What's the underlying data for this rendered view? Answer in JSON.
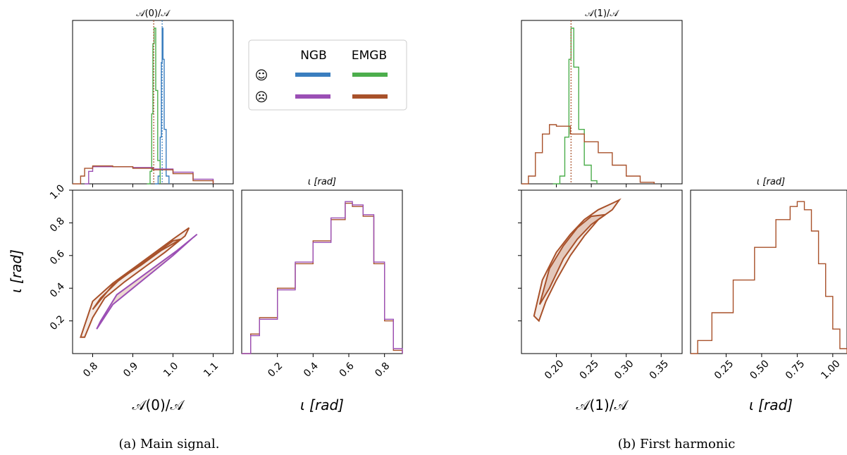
{
  "figure": {
    "caption_a": "(a) Main signal.",
    "caption_b": "(b) First harmonic"
  },
  "legend": {
    "col1": "NGB",
    "col2": "EMGB",
    "row1_symbol": "☺",
    "row2_symbol": "☹",
    "colors": {
      "ngb_happy": "#3a7ebf",
      "emgb_happy": "#4cae4c",
      "ngb_sad": "#9b4fb5",
      "emgb_sad": "#a8512a"
    }
  },
  "chart_data": [
    {
      "id": "a-top",
      "type": "line",
      "title": "𝒜(0)/𝒜",
      "xlim": [
        0.75,
        1.15
      ],
      "x_ticks": [
        0.8,
        0.9,
        1.0,
        1.1
      ],
      "truth_lines": [
        0.952,
        0.973
      ],
      "series": [
        {
          "name": "NGB ☺",
          "color": "#3a7ebf",
          "x": [
            0.955,
            0.963,
            0.968,
            0.971,
            0.973,
            0.975,
            0.978,
            0.983,
            0.99
          ],
          "y": [
            0.0,
            0.05,
            0.3,
            0.78,
            1.0,
            0.8,
            0.35,
            0.05,
            0.0
          ]
        },
        {
          "name": "EMGB ☺",
          "color": "#4cae4c",
          "x": [
            0.935,
            0.943,
            0.947,
            0.95,
            0.953,
            0.957,
            0.962,
            0.968
          ],
          "y": [
            0.0,
            0.08,
            0.45,
            0.9,
            1.0,
            0.6,
            0.15,
            0.0
          ]
        },
        {
          "name": "NGB ☹",
          "color": "#9b4fb5",
          "x": [
            0.78,
            0.79,
            0.8,
            0.85,
            0.9,
            0.95,
            1.0,
            1.05,
            1.1
          ],
          "y": [
            0.0,
            0.08,
            0.11,
            0.11,
            0.105,
            0.095,
            0.075,
            0.03,
            0.0
          ]
        },
        {
          "name": "EMGB ☹",
          "color": "#a8512a",
          "x": [
            0.75,
            0.77,
            0.78,
            0.8,
            0.85,
            0.9,
            0.95,
            1.0,
            1.05,
            1.1
          ],
          "y": [
            0.0,
            0.05,
            0.1,
            0.115,
            0.11,
            0.1,
            0.09,
            0.065,
            0.02,
            0.0
          ]
        }
      ]
    },
    {
      "id": "a-2d",
      "type": "contour",
      "xlim": [
        0.75,
        1.15
      ],
      "ylim": [
        0.0,
        1.0
      ],
      "x_ticks": [
        0.8,
        0.9,
        1.0,
        1.1
      ],
      "y_ticks": [
        0.2,
        0.4,
        0.6,
        0.8,
        1.0
      ],
      "xlabel": "𝒜(0)/𝒜",
      "ylabel": "ι [rad]",
      "contours": [
        {
          "name": "EMGB ☹",
          "color": "#a8512a",
          "x": [
            0.77,
            0.8,
            0.85,
            0.9,
            0.95,
            1.0,
            1.04,
            1.03,
            0.98,
            0.93,
            0.88,
            0.83,
            0.8,
            0.78,
            0.77
          ],
          "y": [
            0.1,
            0.32,
            0.43,
            0.52,
            0.61,
            0.7,
            0.77,
            0.72,
            0.62,
            0.53,
            0.44,
            0.34,
            0.22,
            0.1,
            0.1
          ]
        },
        {
          "name": "EMGB ☹",
          "color": "#a8512a",
          "x": [
            0.8,
            0.85,
            0.9,
            0.95,
            1.0,
            1.02,
            0.97,
            0.92,
            0.87,
            0.82,
            0.8
          ],
          "y": [
            0.27,
            0.42,
            0.51,
            0.6,
            0.69,
            0.7,
            0.63,
            0.54,
            0.46,
            0.34,
            0.27
          ]
        },
        {
          "name": "NGB ☹",
          "color": "#9b4fb5",
          "x": [
            0.82,
            0.86,
            0.91,
            0.96,
            1.01,
            1.06,
            1.05,
            1.0,
            0.95,
            0.9,
            0.85,
            0.81,
            0.82
          ],
          "y": [
            0.2,
            0.36,
            0.45,
            0.54,
            0.63,
            0.73,
            0.71,
            0.6,
            0.5,
            0.4,
            0.3,
            0.15,
            0.2
          ]
        }
      ]
    },
    {
      "id": "a-iota",
      "type": "line",
      "title": "ι [rad]",
      "xlim": [
        0.0,
        0.9
      ],
      "x_ticks": [
        0.2,
        0.4,
        0.6,
        0.8
      ],
      "xlabel": "ι [rad]",
      "series": [
        {
          "name": "EMGB ☹",
          "color": "#a8512a",
          "x": [
            0.0,
            0.05,
            0.1,
            0.2,
            0.3,
            0.4,
            0.5,
            0.58,
            0.62,
            0.68,
            0.74,
            0.8,
            0.85,
            0.9
          ],
          "y": [
            0.0,
            0.12,
            0.22,
            0.4,
            0.55,
            0.69,
            0.82,
            0.92,
            0.9,
            0.84,
            0.55,
            0.2,
            0.02,
            0.0
          ]
        },
        {
          "name": "NGB ☹",
          "color": "#9b4fb5",
          "x": [
            0.0,
            0.05,
            0.1,
            0.2,
            0.3,
            0.4,
            0.5,
            0.58,
            0.62,
            0.68,
            0.74,
            0.8,
            0.85,
            0.9
          ],
          "y": [
            0.0,
            0.11,
            0.21,
            0.39,
            0.56,
            0.68,
            0.83,
            0.93,
            0.91,
            0.85,
            0.56,
            0.21,
            0.03,
            0.0
          ]
        }
      ]
    },
    {
      "id": "b-top",
      "type": "line",
      "title": "𝒜(1)/𝒜",
      "xlim": [
        0.15,
        0.38
      ],
      "x_ticks": [
        0.2,
        0.25,
        0.3,
        0.35
      ],
      "truth_lines": [
        0.221
      ],
      "series": [
        {
          "name": "EMGB ☺",
          "color": "#4cae4c",
          "x": [
            0.195,
            0.205,
            0.212,
            0.218,
            0.221,
            0.225,
            0.232,
            0.24,
            0.25,
            0.258
          ],
          "y": [
            0.0,
            0.05,
            0.3,
            0.8,
            1.0,
            0.75,
            0.35,
            0.12,
            0.02,
            0.0
          ]
        },
        {
          "name": "EMGB ☹",
          "color": "#a8512a",
          "x": [
            0.15,
            0.16,
            0.17,
            0.18,
            0.19,
            0.2,
            0.22,
            0.24,
            0.26,
            0.28,
            0.3,
            0.32,
            0.34
          ],
          "y": [
            0.0,
            0.05,
            0.2,
            0.32,
            0.38,
            0.37,
            0.32,
            0.27,
            0.2,
            0.12,
            0.05,
            0.01,
            0.0
          ]
        }
      ]
    },
    {
      "id": "b-2d",
      "type": "contour",
      "xlim": [
        0.15,
        0.38
      ],
      "ylim": [
        0.0,
        1.0
      ],
      "x_ticks": [
        0.2,
        0.25,
        0.3,
        0.35
      ],
      "y_ticks": [
        0.2,
        0.4,
        0.6,
        0.8,
        1.0
      ],
      "xlabel": "𝒜(1)/𝒜",
      "contours": [
        {
          "name": "EMGB ☹",
          "color": "#a8512a",
          "x": [
            0.168,
            0.18,
            0.2,
            0.22,
            0.24,
            0.26,
            0.28,
            0.29,
            0.28,
            0.26,
            0.24,
            0.22,
            0.2,
            0.185,
            0.175,
            0.168
          ],
          "y": [
            0.23,
            0.45,
            0.62,
            0.73,
            0.82,
            0.88,
            0.92,
            0.94,
            0.88,
            0.82,
            0.72,
            0.6,
            0.45,
            0.32,
            0.2,
            0.23
          ]
        },
        {
          "name": "EMGB ☹",
          "color": "#a8512a",
          "x": [
            0.176,
            0.19,
            0.21,
            0.23,
            0.25,
            0.27,
            0.25,
            0.23,
            0.21,
            0.19,
            0.176
          ],
          "y": [
            0.3,
            0.52,
            0.66,
            0.77,
            0.84,
            0.85,
            0.79,
            0.7,
            0.58,
            0.4,
            0.3
          ]
        }
      ]
    },
    {
      "id": "b-iota",
      "type": "line",
      "title": "ι [rad]",
      "xlim": [
        0.0,
        1.1
      ],
      "x_ticks": [
        0.25,
        0.5,
        0.75,
        1.0
      ],
      "xlabel": "ι [rad]",
      "series": [
        {
          "name": "EMGB ☹",
          "color": "#a8512a",
          "x": [
            0.0,
            0.05,
            0.15,
            0.3,
            0.45,
            0.6,
            0.7,
            0.75,
            0.8,
            0.85,
            0.9,
            0.95,
            1.0,
            1.05,
            1.1
          ],
          "y": [
            0.0,
            0.08,
            0.25,
            0.45,
            0.65,
            0.82,
            0.9,
            0.93,
            0.88,
            0.75,
            0.55,
            0.35,
            0.15,
            0.03,
            0.0
          ]
        }
      ]
    }
  ]
}
